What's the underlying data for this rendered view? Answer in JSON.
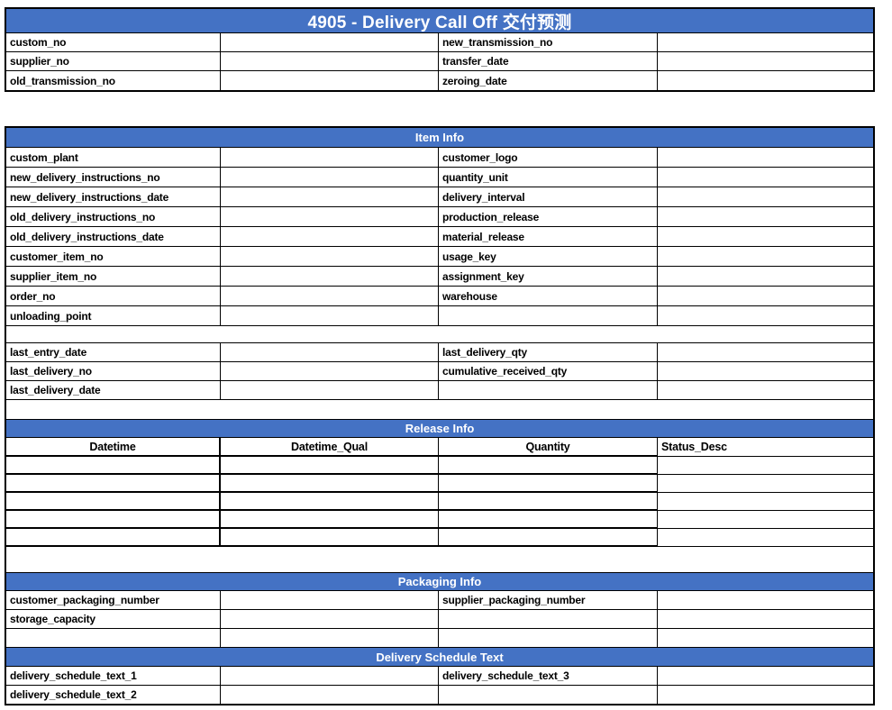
{
  "title": "4905 - Delivery Call Off 交付预测",
  "colors": {
    "header_bg": "#4472C4",
    "header_text": "#ffffff",
    "border": "#000000",
    "page_bg": "#ffffff"
  },
  "top_section": {
    "rows": [
      {
        "left": "custom_no",
        "right": "new_transmission_no"
      },
      {
        "left": "supplier_no",
        "right": "transfer_date"
      },
      {
        "left": "old_transmission_no",
        "right": "zeroing_date"
      }
    ]
  },
  "item_info": {
    "header": "Item Info",
    "rows": [
      {
        "left": "custom_plant",
        "right": "customer_logo"
      },
      {
        "left": "new_delivery_instructions_no",
        "right": "quantity_unit"
      },
      {
        "left": "new_delivery_instructions_date",
        "right": "delivery_interval"
      },
      {
        "left": "old_delivery_instructions_no",
        "right": "production_release"
      },
      {
        "left": "old_delivery_instructions_date",
        "right": "material_release"
      },
      {
        "left": "customer_item_no",
        "right": "usage_key"
      },
      {
        "left": "supplier_item_no",
        "right": "assignment_key"
      },
      {
        "left": "order_no",
        "right": "warehouse"
      },
      {
        "left": "unloading_point",
        "right": ""
      }
    ],
    "summary_rows": [
      {
        "left": "last_entry_date",
        "right": "last_delivery_qty"
      },
      {
        "left": "last_delivery_no",
        "right": "cumulative_received_qty"
      },
      {
        "left": "last_delivery_date",
        "right": ""
      }
    ]
  },
  "release_info": {
    "header": "Release Info",
    "columns": [
      "Datetime",
      "Datetime_Qual",
      "Quantity",
      "Status_Desc"
    ],
    "empty_rows": 5
  },
  "packaging_info": {
    "header": "Packaging Info",
    "rows": [
      {
        "left": "customer_packaging_number",
        "right": "supplier_packaging_number"
      },
      {
        "left": "storage_capacity",
        "right": ""
      },
      {
        "left": "",
        "right": ""
      }
    ]
  },
  "delivery_schedule_text": {
    "header": "Delivery Schedule Text",
    "rows": [
      {
        "left": "delivery_schedule_text_1",
        "right": "delivery_schedule_text_3"
      },
      {
        "left": "delivery_schedule_text_2",
        "right": ""
      }
    ]
  }
}
